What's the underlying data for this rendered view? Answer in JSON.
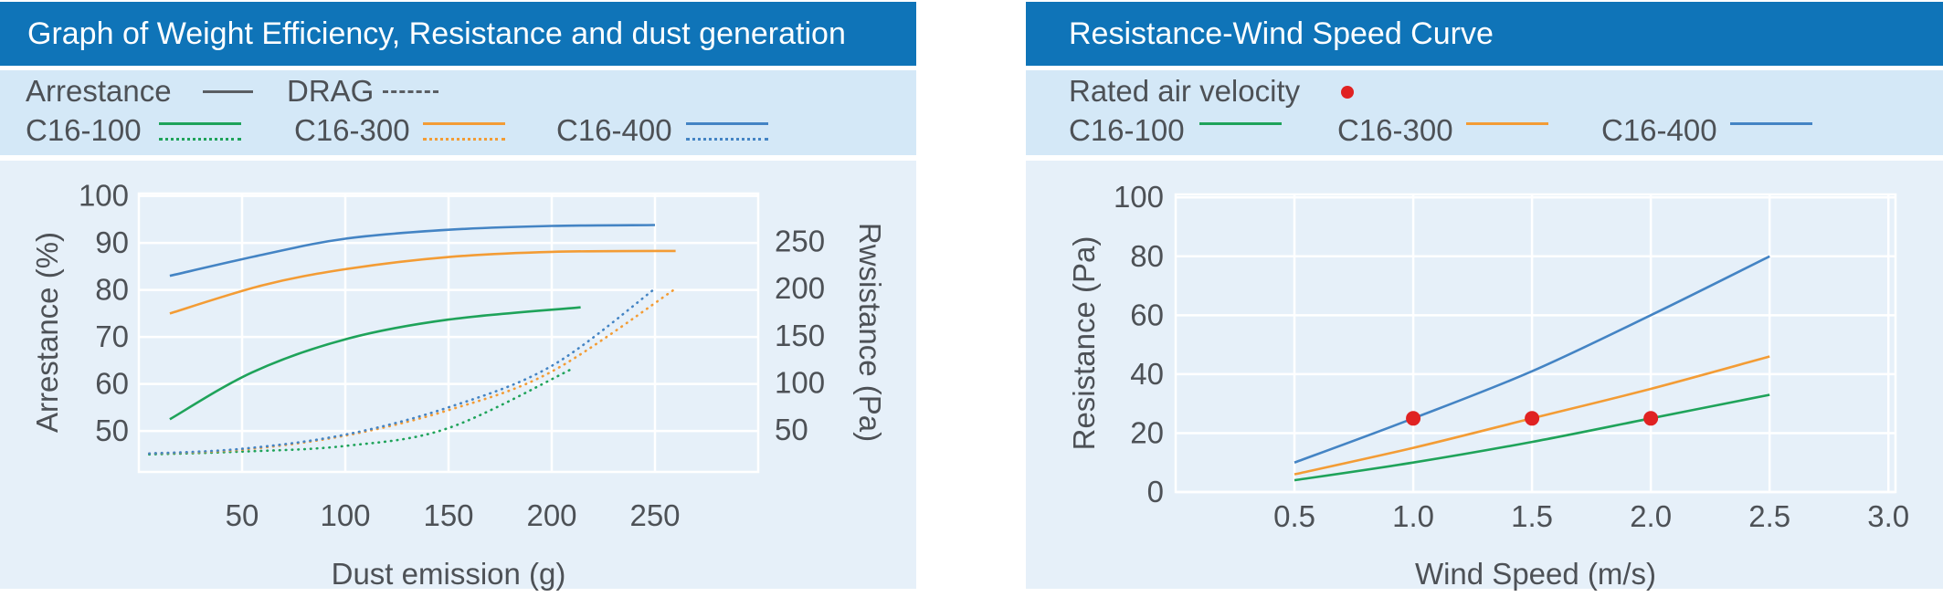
{
  "colors": {
    "header_bg": "#0f74b8",
    "header_text": "#ffffff",
    "legend_band_bg": "#d4e8f7",
    "plot_bg": "#e6f0f9",
    "grid": "#ffffff",
    "text": "#4d5156",
    "gray_line": "#5a5e63",
    "green": "#1fa35a",
    "orange": "#f39c35",
    "blue": "#4484c4",
    "red": "#e02222"
  },
  "panels": {
    "left": {
      "title": "Graph of Weight Efficiency, Resistance and dust generation",
      "legend": {
        "arrestance_label": "Arrestance",
        "drag_label": "DRAG",
        "series": [
          {
            "label": "C16-100",
            "color": "green"
          },
          {
            "label": "C16-300",
            "color": "orange"
          },
          {
            "label": "C16-400",
            "color": "blue"
          }
        ]
      }
    },
    "right": {
      "title": "Resistance-Wind Speed Curve",
      "legend": {
        "rated_label": "Rated air velocity",
        "series": [
          {
            "label": "C16-100",
            "color": "green"
          },
          {
            "label": "C16-300",
            "color": "orange"
          },
          {
            "label": "C16-400",
            "color": "blue"
          }
        ]
      }
    }
  },
  "chart_data": [
    {
      "type": "line",
      "title": "Graph of Weight Efficiency, Resistance and dust generation",
      "xlabel": "Dust emission (g)",
      "ylabel_left": "Arrestance (%)",
      "ylabel_right": "Rwsistance (Pa)",
      "xlim": [
        0,
        300
      ],
      "ylim_left": [
        41.3,
        100.5
      ],
      "ylim_right": [
        5.4,
        301
      ],
      "grid": true,
      "legend_position": "top",
      "xticks": [
        {
          "v": 50,
          "t": "50"
        },
        {
          "v": 100,
          "t": "100"
        },
        {
          "v": 150,
          "t": "150"
        },
        {
          "v": 200,
          "t": "200"
        },
        {
          "v": 250,
          "t": "250"
        }
      ],
      "yticks_left": [
        {
          "v": 50,
          "t": "50"
        },
        {
          "v": 60,
          "t": "60"
        },
        {
          "v": 70,
          "t": "70"
        },
        {
          "v": 80,
          "t": "80"
        },
        {
          "v": 90,
          "t": "90"
        },
        {
          "v": 100,
          "t": "100"
        }
      ],
      "yticks_right": [
        {
          "v": 50,
          "t": "50"
        },
        {
          "v": 100,
          "t": "100"
        },
        {
          "v": 150,
          "t": "150"
        },
        {
          "v": 200,
          "t": "200"
        },
        {
          "v": 250,
          "t": "250"
        }
      ],
      "series": [
        {
          "name": "C16-100 Arrestance",
          "group": "Arrestance",
          "axis": "left",
          "line": "solid",
          "color": "green",
          "points": [
            [
              15,
              52.5
            ],
            [
              55,
              62.5
            ],
            [
              100,
              69.5
            ],
            [
              150,
              73.7
            ],
            [
              214,
              76.3
            ]
          ]
        },
        {
          "name": "C16-300 Arrestance",
          "group": "Arrestance",
          "axis": "left",
          "line": "solid",
          "color": "orange",
          "points": [
            [
              15,
              75
            ],
            [
              60,
              81
            ],
            [
              100,
              84.4
            ],
            [
              150,
              87
            ],
            [
              200,
              88.1
            ],
            [
              260,
              88.3
            ]
          ]
        },
        {
          "name": "C16-400 Arrestance",
          "group": "Arrestance",
          "axis": "left",
          "line": "solid",
          "color": "blue",
          "points": [
            [
              15,
              83
            ],
            [
              60,
              87.5
            ],
            [
              100,
              90.9
            ],
            [
              150,
              92.8
            ],
            [
              200,
              93.6
            ],
            [
              250,
              93.8
            ]
          ]
        },
        {
          "name": "C16-100 DRAG",
          "group": "DRAG",
          "axis": "right",
          "line": "dotted",
          "color": "green",
          "points": [
            [
              5,
              24
            ],
            [
              50,
              27
            ],
            [
              100,
              33
            ],
            [
              150,
              52
            ],
            [
              210,
              115
            ]
          ]
        },
        {
          "name": "C16-300 DRAG",
          "group": "DRAG",
          "axis": "right",
          "line": "dotted",
          "color": "orange",
          "points": [
            [
              5,
              25
            ],
            [
              50,
              29
            ],
            [
              100,
              44
            ],
            [
              150,
              71
            ],
            [
              200,
              112
            ],
            [
              260,
              200
            ]
          ]
        },
        {
          "name": "C16-400 DRAG",
          "group": "DRAG",
          "axis": "right",
          "line": "dotted",
          "color": "blue",
          "points": [
            [
              5,
              25
            ],
            [
              50,
              30
            ],
            [
              100,
              45
            ],
            [
              150,
              74
            ],
            [
              200,
              118
            ],
            [
              250,
              200
            ]
          ]
        }
      ]
    },
    {
      "type": "line",
      "title": "Resistance-Wind Speed Curve",
      "xlabel": "Wind Speed (m/s)",
      "ylabel_left": "Resistance (Pa)",
      "xlim": [
        0,
        3.03
      ],
      "ylim_left": [
        0,
        101
      ],
      "grid": true,
      "legend_position": "top",
      "xticks": [
        {
          "v": 0.5,
          "t": "0.5"
        },
        {
          "v": 1,
          "t": "1.0"
        },
        {
          "v": 1.5,
          "t": "1.5"
        },
        {
          "v": 2,
          "t": "2.0"
        },
        {
          "v": 2.5,
          "t": "2.5"
        },
        {
          "v": 3,
          "t": "3.0"
        }
      ],
      "yticks_left": [
        {
          "v": 0,
          "t": "0"
        },
        {
          "v": 20,
          "t": "20"
        },
        {
          "v": 40,
          "t": "40"
        },
        {
          "v": 60,
          "t": "60"
        },
        {
          "v": 80,
          "t": "80"
        },
        {
          "v": 100,
          "t": "100"
        }
      ],
      "series": [
        {
          "name": "C16-100",
          "axis": "left",
          "line": "solid",
          "color": "green",
          "points": [
            [
              0.5,
              4
            ],
            [
              1,
              10
            ],
            [
              1.5,
              17
            ],
            [
              2,
              25
            ],
            [
              2.5,
              33
            ]
          ]
        },
        {
          "name": "C16-300",
          "axis": "left",
          "line": "solid",
          "color": "orange",
          "points": [
            [
              0.5,
              6
            ],
            [
              1,
              15
            ],
            [
              1.5,
              25
            ],
            [
              2,
              35
            ],
            [
              2.5,
              46
            ]
          ]
        },
        {
          "name": "C16-400",
          "axis": "left",
          "line": "solid",
          "color": "blue",
          "points": [
            [
              0.5,
              10
            ],
            [
              1,
              25
            ],
            [
              1.5,
              41
            ],
            [
              2,
              60
            ],
            [
              2.5,
              80
            ]
          ]
        }
      ],
      "markers": {
        "name": "Rated air velocity",
        "color": "red",
        "points": [
          [
            1,
            25
          ],
          [
            1.5,
            25
          ],
          [
            2,
            25
          ]
        ]
      }
    }
  ]
}
